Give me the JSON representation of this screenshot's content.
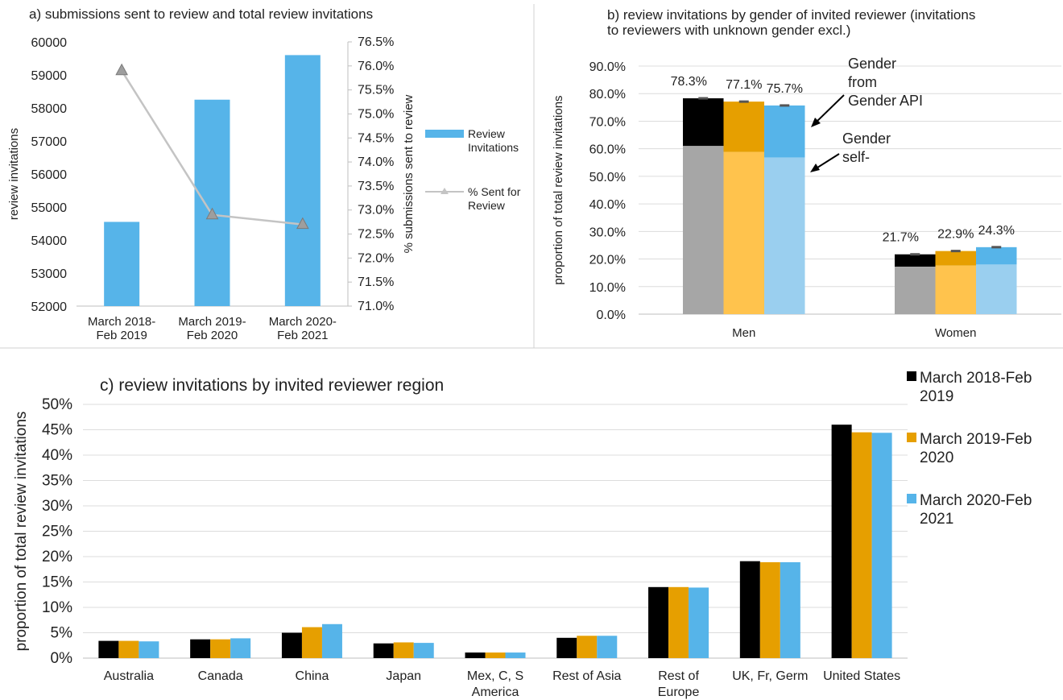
{
  "colors": {
    "y2019": "#000000",
    "y2020": "#e69f00",
    "y2021": "#56b4e9",
    "y2019_self": "#a6a6a6",
    "y2020_self": "#ffc34d",
    "y2021_self": "#9acfef",
    "line": "#c4c4c4",
    "marker": "#9e9e9e",
    "grid": "#dcdcdc",
    "divider": "#d0d0d0"
  },
  "chart_data": [
    {
      "id": "a",
      "type": "bar",
      "title": "a) submissions sent to review and total review invitations",
      "categories": [
        "March 2018-Feb 2019",
        "March 2019-Feb 2020",
        "March 2020-Feb 2021"
      ],
      "category_lines": [
        [
          "March 2018-",
          "Feb 2019"
        ],
        [
          "March 2019-",
          "Feb 2020"
        ],
        [
          "March 2020-",
          "Feb 2021"
        ]
      ],
      "ylabel": "review invitations",
      "y2label": "% submissions sent to review",
      "ylim": [
        52000,
        60000
      ],
      "yticks": [
        52000,
        53000,
        54000,
        55000,
        56000,
        57000,
        58000,
        59000,
        60000
      ],
      "y2lim": [
        71.0,
        76.5
      ],
      "y2ticks": [
        "71.0%",
        "71.5%",
        "72.0%",
        "72.5%",
        "73.0%",
        "73.5%",
        "74.0%",
        "74.5%",
        "75.0%",
        "75.5%",
        "76.0%",
        "76.5%"
      ],
      "series": [
        {
          "name": "Review Invitations",
          "name_lines": [
            "Review",
            "Invitations"
          ],
          "type": "bar",
          "axis": "left",
          "values": [
            54550,
            58250,
            59600
          ]
        },
        {
          "name": "% Sent for Review",
          "name_lines": [
            "% Sent for",
            "Review"
          ],
          "type": "line",
          "axis": "right",
          "values": [
            75.9,
            72.9,
            72.7
          ]
        }
      ]
    },
    {
      "id": "b",
      "type": "bar",
      "stacked": true,
      "title_lines": [
        "b) review invitations by gender of invited reviewer (invitations",
        "to reviewers with unknown gender excl.)"
      ],
      "categories": [
        "Men",
        "Women"
      ],
      "ylabel": "proportion of total review invitations",
      "ylim": [
        0,
        90
      ],
      "yticks": [
        "0.0%",
        "10.0%",
        "20.0%",
        "30.0%",
        "40.0%",
        "50.0%",
        "60.0%",
        "70.0%",
        "80.0%",
        "90.0%"
      ],
      "years": [
        "March 2018-Feb 2019",
        "March 2019-Feb 2020",
        "March 2020-Feb 2021"
      ],
      "totals": [
        [
          78.3,
          77.1,
          75.7
        ],
        [
          21.7,
          22.9,
          24.3
        ]
      ],
      "total_labels": [
        [
          "78.3%",
          "77.1%",
          "75.7%"
        ],
        [
          "21.7%",
          "22.9%",
          "24.3%"
        ]
      ],
      "self_reported": [
        [
          61.0,
          58.8,
          56.8
        ],
        [
          17.2,
          17.6,
          18.0
        ]
      ],
      "annotations": [
        {
          "lines": [
            "Gender",
            "from",
            "Gender API"
          ]
        },
        {
          "lines": [
            "Gender",
            "self-"
          ]
        }
      ]
    },
    {
      "id": "c",
      "type": "bar",
      "title": "c) review invitations by invited reviewer region",
      "categories": [
        "Australia",
        "Canada",
        "China",
        "Japan",
        "Mex, C, S America",
        "Rest of Asia",
        "Rest of Europe",
        "UK, Fr, Germ",
        "United States"
      ],
      "category_lines": [
        [
          "Australia"
        ],
        [
          "Canada"
        ],
        [
          "China"
        ],
        [
          "Japan"
        ],
        [
          "Mex, C, S",
          "America"
        ],
        [
          "Rest of Asia"
        ],
        [
          "Rest of",
          "Europe"
        ],
        [
          "UK, Fr, Germ"
        ],
        [
          "United States"
        ]
      ],
      "ylabel": "proportion of total review invitations",
      "ylim": [
        0,
        50
      ],
      "yticks": [
        "0%",
        "5%",
        "10%",
        "15%",
        "20%",
        "25%",
        "30%",
        "35%",
        "40%",
        "45%",
        "50%"
      ],
      "series": [
        {
          "name": "March 2018-Feb 2019",
          "name_lines": [
            "March 2018-Feb",
            "2019"
          ],
          "values": [
            3.4,
            3.7,
            5.0,
            2.9,
            1.1,
            4.0,
            14.0,
            19.1,
            46.0
          ]
        },
        {
          "name": "March 2019-Feb 2020",
          "name_lines": [
            "March 2019-Feb",
            "2020"
          ],
          "values": [
            3.4,
            3.7,
            6.1,
            3.1,
            1.1,
            4.4,
            14.0,
            18.9,
            44.5
          ]
        },
        {
          "name": "March 2020-Feb 2021",
          "name_lines": [
            "March 2020-Feb",
            "2021"
          ],
          "values": [
            3.3,
            3.9,
            6.7,
            3.0,
            1.1,
            4.4,
            13.9,
            18.9,
            44.4
          ]
        }
      ],
      "legend_position": "right"
    }
  ]
}
